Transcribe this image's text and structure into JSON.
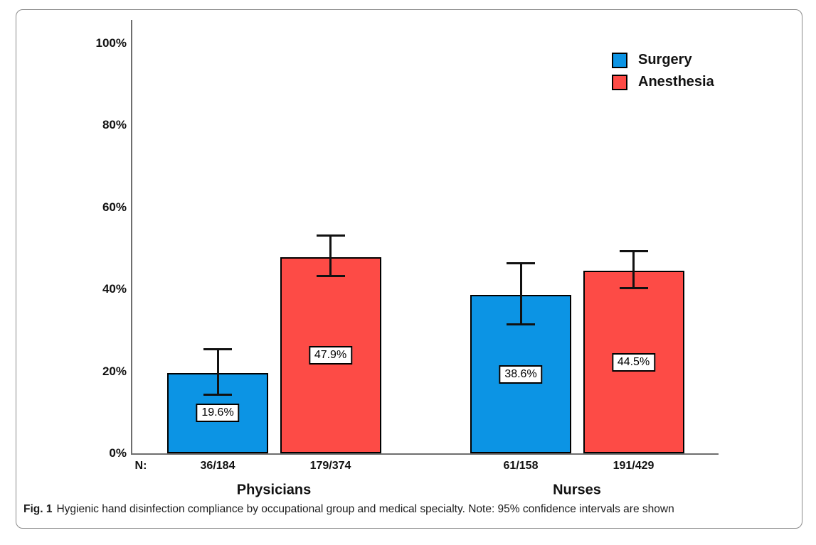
{
  "figure": {
    "caption_label": "Fig. 1",
    "caption_text": "Hygienic hand disinfection compliance by occupational group and medical specialty. Note: 95% confidence intervals are shown"
  },
  "colors": {
    "series": [
      "#0C94E4",
      "#FD4B46"
    ],
    "axis": "#6e6e6e",
    "error_bar": "#111111",
    "frame_border": "#8a8a8a"
  },
  "chart_data": {
    "type": "bar",
    "title": "",
    "xlabel": "",
    "ylabel": "",
    "ylim": [
      0,
      100
    ],
    "grid": false,
    "legend_position": "top-right",
    "legend": [
      "Surgery",
      "Anesthesia"
    ],
    "yticks": [
      "0%",
      "20%",
      "40%",
      "60%",
      "80%",
      "100%"
    ],
    "n_axis_prefix": "N:",
    "groups": [
      "Physicians",
      "Nurses"
    ],
    "bars": [
      {
        "group": "Physicians",
        "series": "Surgery",
        "value": 19.6,
        "label": "19.6%",
        "ci_low": 14.0,
        "ci_high": 25.7,
        "n": "36/184"
      },
      {
        "group": "Physicians",
        "series": "Anesthesia",
        "value": 47.9,
        "label": "47.9%",
        "ci_low": 43.0,
        "ci_high": 53.4,
        "n": "179/374"
      },
      {
        "group": "Nurses",
        "series": "Surgery",
        "value": 38.6,
        "label": "38.6%",
        "ci_low": 31.2,
        "ci_high": 46.6,
        "n": "61/158"
      },
      {
        "group": "Nurses",
        "series": "Anesthesia",
        "value": 44.5,
        "label": "44.5%",
        "ci_low": 40.1,
        "ci_high": 49.6,
        "n": "191/429"
      }
    ]
  }
}
